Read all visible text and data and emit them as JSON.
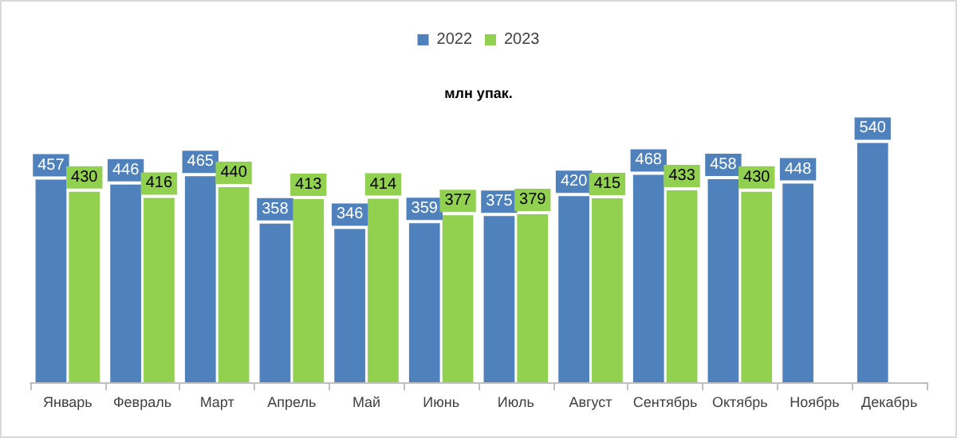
{
  "chart_data": {
    "type": "bar",
    "title": "млн упак.",
    "categories": [
      "Январь",
      "Февраль",
      "Март",
      "Апрель",
      "Май",
      "Июнь",
      "Июль",
      "Август",
      "Сентябрь",
      "Октябрь",
      "Ноябрь",
      "Декабрь"
    ],
    "series": [
      {
        "name": "2022",
        "color": "#4f81bd",
        "values": [
          457,
          446,
          465,
          358,
          346,
          359,
          375,
          420,
          468,
          458,
          448,
          540
        ]
      },
      {
        "name": "2023",
        "color": "#92d050",
        "values": [
          430,
          416,
          440,
          413,
          414,
          377,
          379,
          415,
          433,
          430,
          null,
          null
        ]
      }
    ],
    "data_labels": true,
    "legend": "top"
  }
}
